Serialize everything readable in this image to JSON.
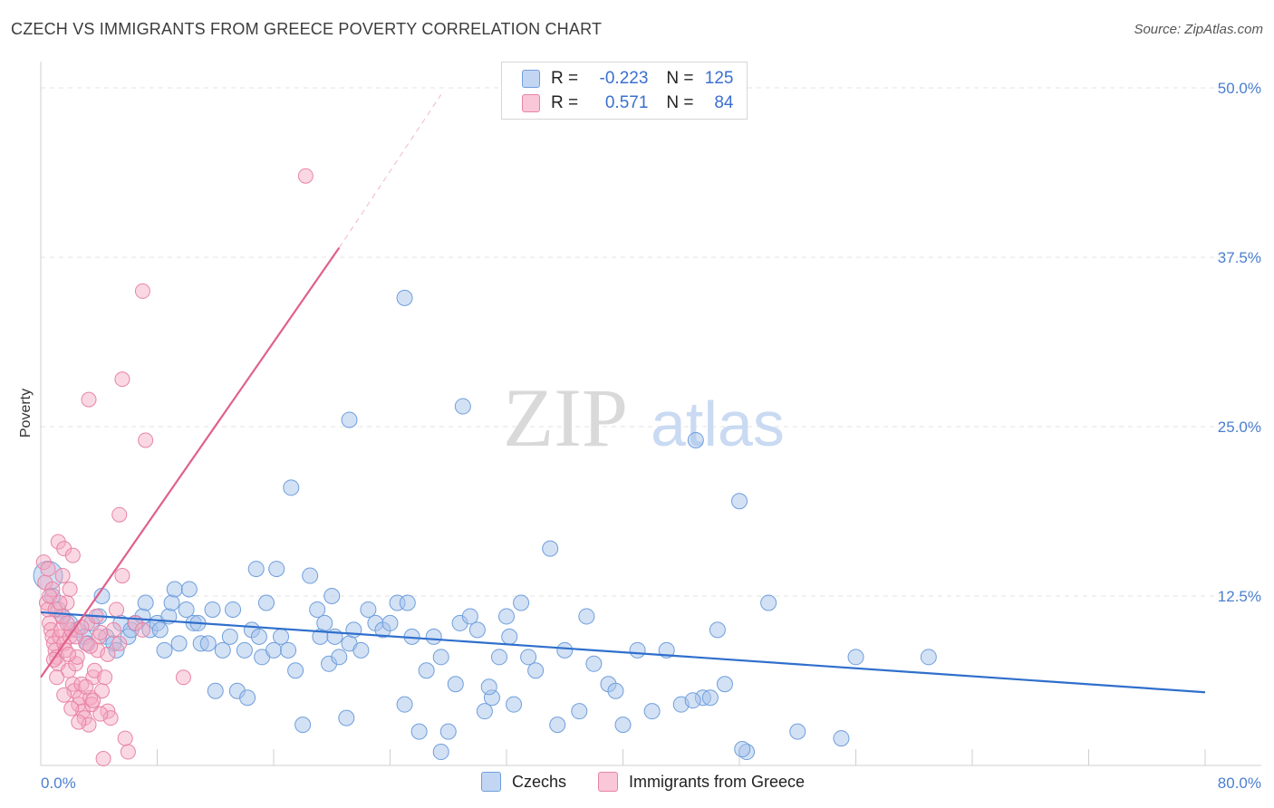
{
  "header": {
    "title": "CZECH VS IMMIGRANTS FROM GREECE POVERTY CORRELATION CHART",
    "source": "Source: ZipAtlas.com"
  },
  "legend": {
    "czech": {
      "r_label": "R =",
      "r_value": "-0.223",
      "n_label": "N =",
      "n_value": "125"
    },
    "greece": {
      "r_label": "R =",
      "r_value": "0.571",
      "n_label": "N =",
      "n_value": "84"
    }
  },
  "bottom_legend": {
    "czech": "Czechs",
    "greece": "Immigrants from Greece"
  },
  "watermark": {
    "zip": "ZIP",
    "atlas": "atlas"
  },
  "colors": {
    "czech_fill": "#a8c4ec",
    "czech_stroke": "#6f9fdc",
    "czech_line": "#2f6fcc",
    "greece_fill": "#f5a9c2",
    "greece_stroke": "#e884a6",
    "greece_line": "#e0608c",
    "tick": "#4a7fd0",
    "grid": "#e3e3e3"
  },
  "chart_data": {
    "type": "scatter",
    "title": "CZECH VS IMMIGRANTS FROM GREECE POVERTY CORRELATION CHART",
    "xlabel": "",
    "ylabel": "Poverty",
    "xlim": [
      0,
      80
    ],
    "ylim": [
      0,
      50
    ],
    "x_tick_labels": [
      "0.0%",
      "80.0%"
    ],
    "y_ticks": [
      12.5,
      25.0,
      37.5,
      50.0
    ],
    "y_tick_labels": [
      "12.5%",
      "25.0%",
      "37.5%",
      "50.0%"
    ],
    "grid": "horizontal dashed",
    "legend_placement": "top-center",
    "series": [
      {
        "name": "Czechs",
        "color": "#6f9fdc",
        "trend": {
          "x": [
            0,
            80
          ],
          "y": [
            11.3,
            5.4
          ]
        },
        "points": [
          [
            0.5,
            14
          ],
          [
            0.8,
            12.5
          ],
          [
            1.2,
            11.5
          ],
          [
            1.5,
            11
          ],
          [
            2,
            10.5
          ],
          [
            2.5,
            10
          ],
          [
            3,
            9.5
          ],
          [
            3.2,
            9
          ],
          [
            3.5,
            10.5
          ],
          [
            4,
            11
          ],
          [
            4.2,
            12.5
          ],
          [
            4.5,
            9.5
          ],
          [
            5,
            9
          ],
          [
            5.2,
            8.5
          ],
          [
            5.5,
            10.5
          ],
          [
            6,
            9.5
          ],
          [
            6.2,
            10
          ],
          [
            6.5,
            10.5
          ],
          [
            7,
            11
          ],
          [
            7.2,
            12
          ],
          [
            7.5,
            10
          ],
          [
            8,
            10.5
          ],
          [
            8.2,
            10
          ],
          [
            8.5,
            8.5
          ],
          [
            8.8,
            11
          ],
          [
            9,
            12
          ],
          [
            9.2,
            13
          ],
          [
            9.5,
            9
          ],
          [
            10,
            11.5
          ],
          [
            10.2,
            13
          ],
          [
            10.5,
            10.5
          ],
          [
            10.8,
            10.5
          ],
          [
            11,
            9
          ],
          [
            11.5,
            9
          ],
          [
            11.8,
            11.5
          ],
          [
            12,
            5.5
          ],
          [
            12.5,
            8.5
          ],
          [
            13,
            9.5
          ],
          [
            13.2,
            11.5
          ],
          [
            13.5,
            5.5
          ],
          [
            14,
            8.5
          ],
          [
            14.2,
            5
          ],
          [
            14.5,
            10
          ],
          [
            14.8,
            14.5
          ],
          [
            15,
            9.5
          ],
          [
            15.2,
            8
          ],
          [
            15.5,
            12
          ],
          [
            16,
            8.5
          ],
          [
            16.2,
            14.5
          ],
          [
            16.5,
            9.5
          ],
          [
            17,
            8.5
          ],
          [
            17.2,
            20.5
          ],
          [
            17.5,
            7
          ],
          [
            18,
            3
          ],
          [
            18.5,
            14
          ],
          [
            19,
            11.5
          ],
          [
            19.2,
            9.5
          ],
          [
            19.5,
            10.5
          ],
          [
            19.8,
            7.5
          ],
          [
            20,
            12.5
          ],
          [
            20.2,
            9.5
          ],
          [
            20.5,
            8
          ],
          [
            21,
            3.5
          ],
          [
            21.2,
            9
          ],
          [
            21.5,
            10
          ],
          [
            22,
            8.5
          ],
          [
            22.5,
            11.5
          ],
          [
            23,
            10.5
          ],
          [
            23.5,
            10
          ],
          [
            24,
            10.5
          ],
          [
            24.5,
            12
          ],
          [
            25,
            4.5
          ],
          [
            25.2,
            12
          ],
          [
            25.5,
            9.5
          ],
          [
            26,
            2.5
          ],
          [
            26.5,
            7
          ],
          [
            27,
            9.5
          ],
          [
            27.5,
            8
          ],
          [
            28,
            2.5
          ],
          [
            28.5,
            6
          ],
          [
            28.8,
            10.5
          ],
          [
            29,
            26.5
          ],
          [
            29.5,
            11
          ],
          [
            30,
            10
          ],
          [
            30.5,
            4
          ],
          [
            31,
            5
          ],
          [
            31.5,
            8
          ],
          [
            32,
            11
          ],
          [
            32.2,
            9.5
          ],
          [
            32.5,
            4.5
          ],
          [
            33,
            12
          ],
          [
            33.5,
            8
          ],
          [
            34,
            7
          ],
          [
            35,
            16
          ],
          [
            35.5,
            3
          ],
          [
            36,
            8.5
          ],
          [
            37,
            4
          ],
          [
            37.5,
            11
          ],
          [
            38,
            7.5
          ],
          [
            39,
            6
          ],
          [
            39.5,
            5.5
          ],
          [
            40,
            3
          ],
          [
            41,
            8.5
          ],
          [
            42,
            4
          ],
          [
            43,
            8.5
          ],
          [
            44,
            4.5
          ],
          [
            45,
            24
          ],
          [
            45.5,
            5
          ],
          [
            46,
            5
          ],
          [
            46.5,
            10
          ],
          [
            47,
            6
          ],
          [
            48,
            19.5
          ],
          [
            48.5,
            1
          ],
          [
            50,
            12
          ],
          [
            52,
            2.5
          ],
          [
            55,
            2
          ],
          [
            56,
            8
          ],
          [
            61,
            8
          ],
          [
            25,
            34.5
          ],
          [
            21.2,
            25.5
          ],
          [
            27.5,
            1
          ],
          [
            48.2,
            1.2
          ],
          [
            44.8,
            4.8
          ],
          [
            30.8,
            5.8
          ]
        ]
      },
      {
        "name": "Immigrants from Greece",
        "color": "#e884a6",
        "trend": {
          "x": [
            0,
            20.5
          ],
          "y": [
            6.5,
            38.2
          ]
        },
        "trend_extension": {
          "x": [
            20.5,
            27.5
          ],
          "y": [
            38.2,
            49.5
          ]
        },
        "points": [
          [
            0.2,
            15
          ],
          [
            0.3,
            13.5
          ],
          [
            0.4,
            12
          ],
          [
            0.5,
            11.5
          ],
          [
            0.6,
            10.5
          ],
          [
            0.7,
            10
          ],
          [
            0.8,
            9.5
          ],
          [
            0.9,
            9
          ],
          [
            1,
            8.5
          ],
          [
            1.1,
            8
          ],
          [
            1.2,
            7.5
          ],
          [
            1.3,
            9.5
          ],
          [
            1.4,
            10
          ],
          [
            1.5,
            11
          ],
          [
            1.6,
            9
          ],
          [
            1.7,
            8.5
          ],
          [
            1.8,
            12
          ],
          [
            1.9,
            7
          ],
          [
            2,
            9.5
          ],
          [
            2.1,
            10
          ],
          [
            2.2,
            6
          ],
          [
            2.3,
            5.5
          ],
          [
            2.4,
            7.5
          ],
          [
            2.5,
            8
          ],
          [
            2.6,
            4.5
          ],
          [
            2.7,
            5
          ],
          [
            2.8,
            6
          ],
          [
            2.9,
            4
          ],
          [
            3,
            3.5
          ],
          [
            3.1,
            9
          ],
          [
            3.2,
            10.5
          ],
          [
            3.3,
            3
          ],
          [
            3.4,
            5
          ],
          [
            3.5,
            4.5
          ],
          [
            3.6,
            6.5
          ],
          [
            3.7,
            7
          ],
          [
            3.8,
            11
          ],
          [
            3.9,
            8.5
          ],
          [
            4,
            9.5
          ],
          [
            4.2,
            5.5
          ],
          [
            4.4,
            6.5
          ],
          [
            4.6,
            4
          ],
          [
            4.8,
            3.5
          ],
          [
            5,
            10
          ],
          [
            5.2,
            11.5
          ],
          [
            5.4,
            9
          ],
          [
            5.6,
            14
          ],
          [
            5.8,
            2
          ],
          [
            6,
            1
          ],
          [
            6.5,
            10.5
          ],
          [
            7,
            10
          ],
          [
            1.2,
            16.5
          ],
          [
            1.6,
            16
          ],
          [
            2.2,
            15.5
          ],
          [
            3.3,
            27
          ],
          [
            5.4,
            18.5
          ],
          [
            5.6,
            28.5
          ],
          [
            7,
            35
          ],
          [
            7.2,
            24
          ],
          [
            9.8,
            6.5
          ],
          [
            18.2,
            43.5
          ],
          [
            4.3,
            0.5
          ],
          [
            0.5,
            14.5
          ],
          [
            0.8,
            13
          ],
          [
            1.5,
            14
          ],
          [
            2,
            13
          ],
          [
            0.6,
            12.5
          ],
          [
            1,
            11.5
          ],
          [
            1.3,
            12
          ],
          [
            1.8,
            10.5
          ],
          [
            2.4,
            9.5
          ],
          [
            2.8,
            10.2
          ],
          [
            3.4,
            8.8
          ],
          [
            4.1,
            9.8
          ],
          [
            4.6,
            8.2
          ],
          [
            1.1,
            6.5
          ],
          [
            1.6,
            5.2
          ],
          [
            2.1,
            4.2
          ],
          [
            2.6,
            3.2
          ],
          [
            3.1,
            5.8
          ],
          [
            3.6,
            4.8
          ],
          [
            4.1,
            3.8
          ],
          [
            0.9,
            7.8
          ],
          [
            1.9,
            8.2
          ]
        ]
      }
    ]
  }
}
